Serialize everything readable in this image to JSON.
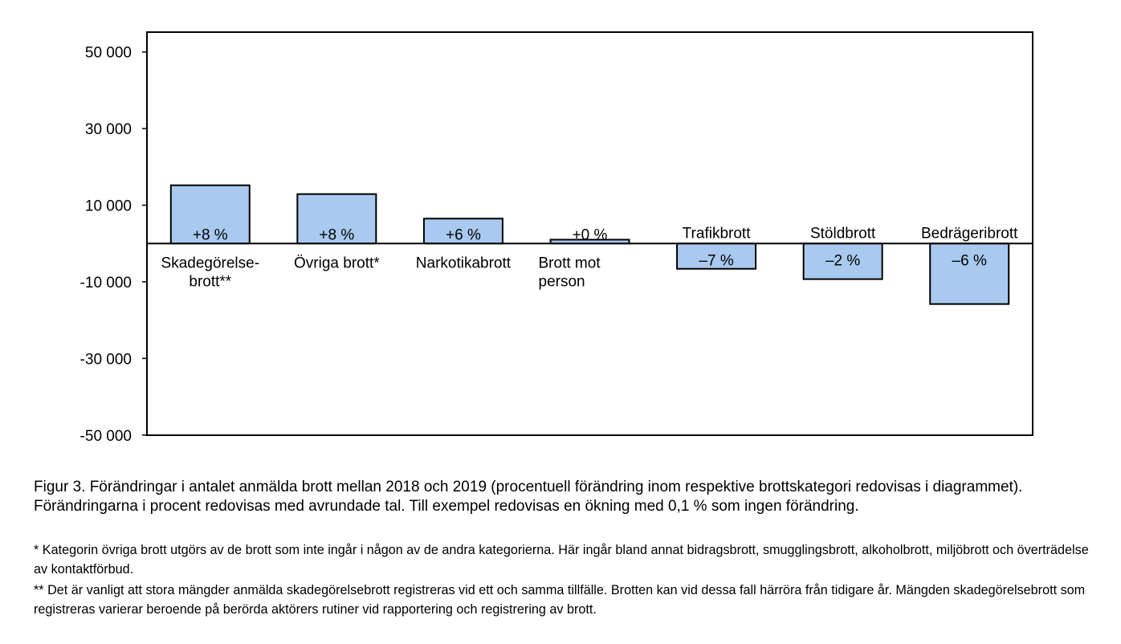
{
  "chart_data": {
    "type": "bar",
    "categories": [
      [
        "Skadegörelse-",
        "brott**"
      ],
      [
        "Övriga brott*"
      ],
      [
        "Narkotikabrott"
      ],
      [
        "Brott mot",
        "person"
      ],
      [
        "Trafikbrott"
      ],
      [
        "Stöldbrott"
      ],
      [
        "Bedrägeribrott"
      ]
    ],
    "values": [
      15200,
      12900,
      6500,
      1000,
      -6600,
      -9300,
      -15800
    ],
    "data_labels": [
      "+8 %",
      "+8 %",
      "+6 %",
      "+0 %",
      "–7 %",
      "–2 %",
      "–6  %"
    ],
    "y_ticks": [
      50000,
      30000,
      10000,
      -10000,
      -30000,
      -50000
    ],
    "y_tick_labels": [
      "50 000",
      "30 000",
      "10 000",
      "-10 000",
      "-30 000",
      "-50 000"
    ],
    "ylim": [
      -50000,
      50000
    ],
    "grid": false,
    "legend": "none",
    "bar_color": "#a9c9ef",
    "bar_edge_color": "#000000"
  },
  "caption": "Figur 3. Förändringar i antalet anmälda brott mellan 2018 och 2019 (procentuell förändring inom respektive brottskategori redovisas i diagrammet). Förändringarna i procent redovisas med avrundade tal. Till exempel redovisas en ökning med 0,1 % som ingen förändring.",
  "footnotes": {
    "note1": "* Kategorin övriga brott utgörs av de brott som inte ingår i någon av de andra kategorierna. Här ingår bland annat bidragsbrott, smugglingsbrott, alkoholbrott, miljöbrott och överträdelse av kontaktförbud.",
    "note2": "** Det är vanligt att stora mängder anmälda skadegörelsebrott registreras vid ett och samma tillfälle. Brotten kan vid dessa fall härröra från tidigare år. Mängden skadegörelsebrott som registreras varierar beroende på berörda aktörers rutiner vid rapportering och registrering av brott."
  }
}
